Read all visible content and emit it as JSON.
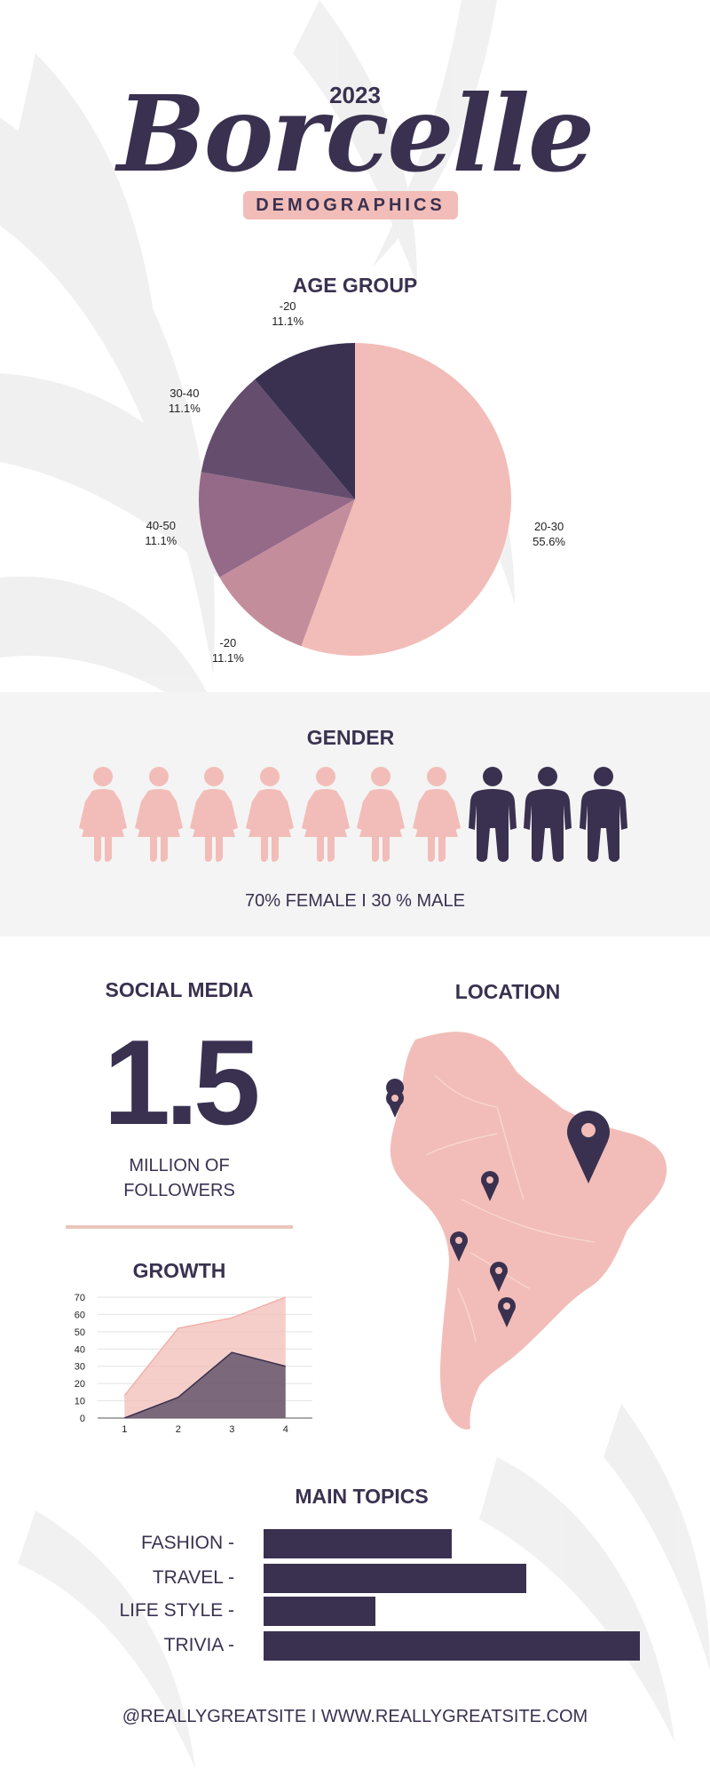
{
  "header": {
    "year": "2023",
    "brand": "Borcelle",
    "badge": "DEMOGRAPHICS"
  },
  "age_group": {
    "title": "AGE GROUP"
  },
  "gender": {
    "title": "GENDER",
    "female_count": 7,
    "male_count": 3,
    "summary": "70% FEMALE  I  30 % MALE"
  },
  "social": {
    "title": "SOCIAL MEDIA",
    "value": "1.5",
    "caption_line1": "MILLION OF",
    "caption_line2": "FOLLOWERS"
  },
  "location": {
    "title": "LOCATION"
  },
  "growth": {
    "title": "GROWTH"
  },
  "topics": {
    "title": "MAIN TOPICS"
  },
  "footer": {
    "text": "@REALLYGREATSITE  I  WWW.REALLYGREATSITE.COM"
  },
  "colors": {
    "navy": "#3a3150",
    "pink": "#f2bdb8",
    "light_gray": "#f4f4f4"
  },
  "chart_data": [
    {
      "type": "pie",
      "title": "AGE GROUP",
      "slices": [
        {
          "label": "20-30",
          "value": 55.6,
          "display": "55.6%",
          "color": "#f2bdb8"
        },
        {
          "label": "-20",
          "value": 11.1,
          "display": "11.1%",
          "color": "#c48d9c"
        },
        {
          "label": "40-50",
          "value": 11.1,
          "display": "11.1%",
          "color": "#956a88"
        },
        {
          "label": "30-40",
          "value": 11.1,
          "display": "11.1%",
          "color": "#654d6e"
        },
        {
          "label": "-20",
          "value": 11.1,
          "display": "11.1%",
          "color": "#3a3150"
        }
      ]
    },
    {
      "type": "area",
      "title": "GROWTH",
      "x": [
        1,
        2,
        3,
        4
      ],
      "series": [
        {
          "values": [
            13,
            52,
            58,
            70
          ],
          "color": "#f2bdb8"
        },
        {
          "values": [
            0,
            12,
            38,
            30
          ],
          "color": "#3a3150"
        }
      ],
      "ylim": [
        0,
        70
      ],
      "yticks": [
        0,
        10,
        20,
        30,
        40,
        50,
        60,
        70
      ],
      "grid": true
    },
    {
      "type": "bar",
      "title": "MAIN TOPICS",
      "orientation": "horizontal",
      "categories": [
        "FASHION -",
        "TRAVEL -",
        "LIFE STYLE -",
        "TRIVIA -"
      ],
      "values": [
        212,
        296,
        126,
        424
      ]
    }
  ]
}
